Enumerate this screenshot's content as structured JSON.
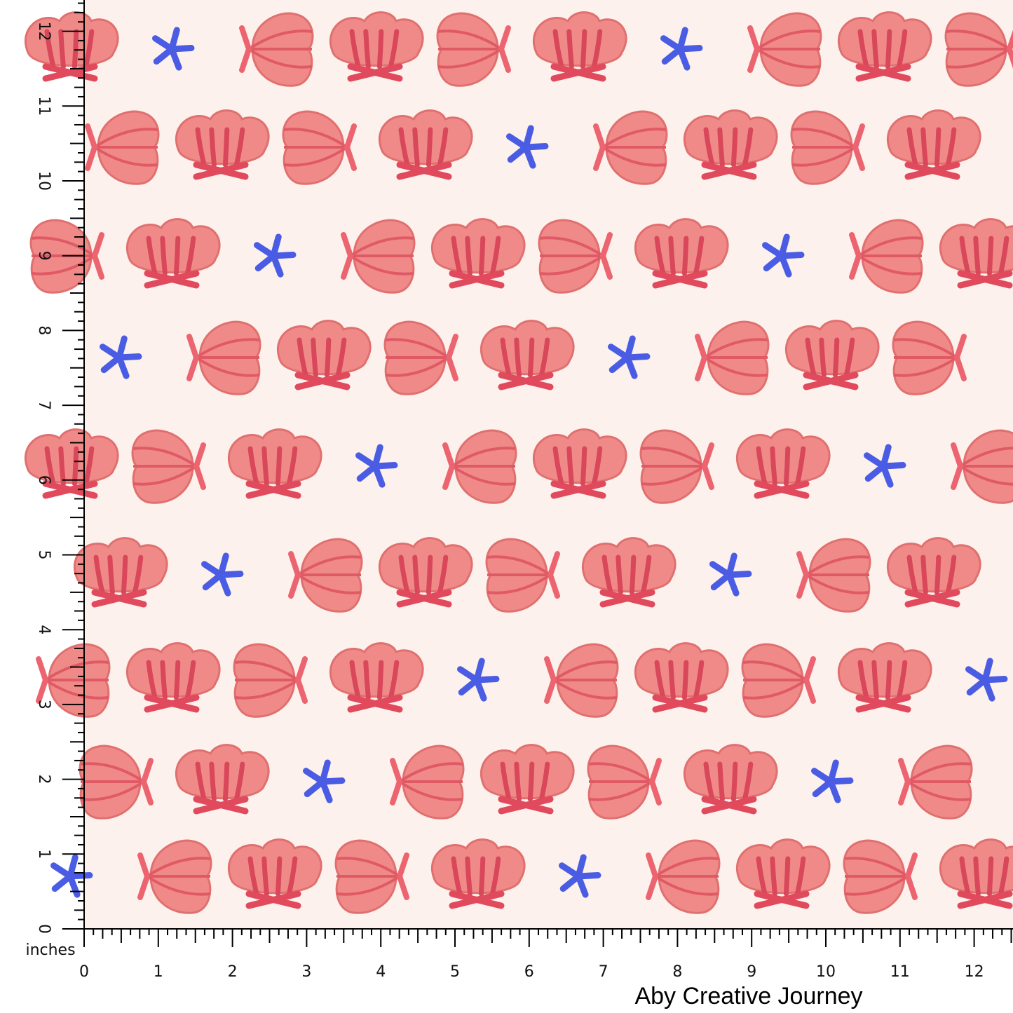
{
  "rulers": {
    "unit": "inches",
    "x_labels": [
      "0",
      "1",
      "2",
      "3",
      "4",
      "5",
      "6",
      "7",
      "8",
      "9",
      "10",
      "11",
      "12"
    ],
    "y_labels": [
      "0",
      "1",
      "2",
      "3",
      "4",
      "5",
      "6",
      "7",
      "8",
      "9",
      "10",
      "11",
      "12"
    ]
  },
  "credit": "Aby Creative Journey"
}
